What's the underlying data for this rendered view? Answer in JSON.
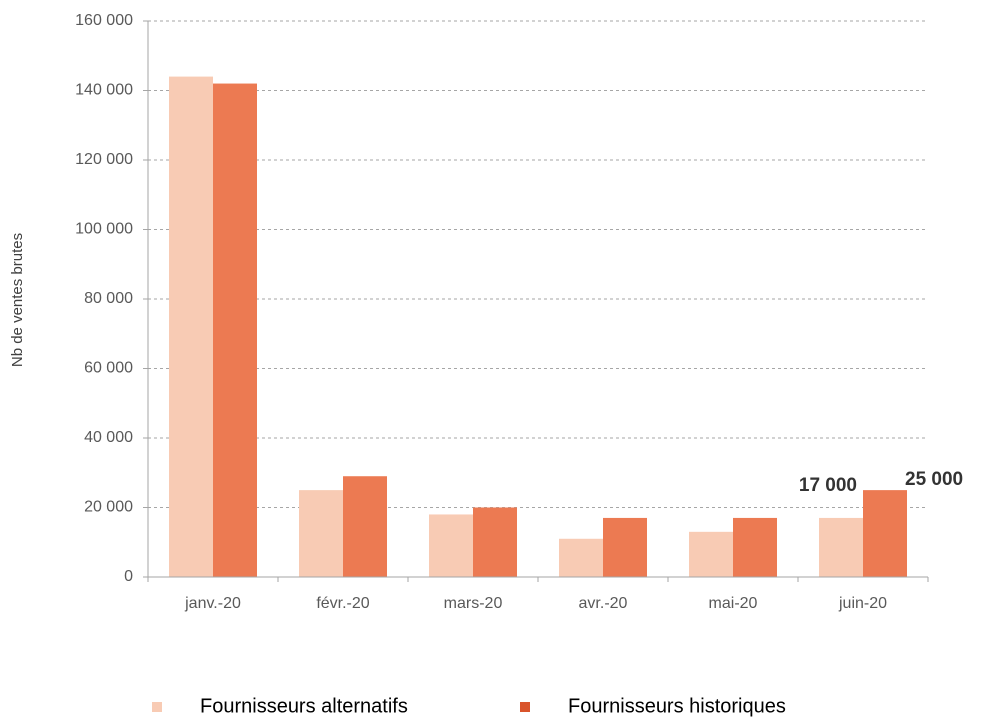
{
  "chart_data": {
    "type": "bar",
    "y_label": "Nb de ventes brutes",
    "categories": [
      "janv.-20",
      "févr.-20",
      "mars-20",
      "avr.-20",
      "mai-20",
      "juin-20"
    ],
    "series": [
      {
        "name": "Fournisseurs alternatifs",
        "color": "#f8cbb4",
        "values": [
          144000,
          25000,
          18000,
          11000,
          13000,
          17000
        ],
        "value_labels": [
          null,
          null,
          null,
          null,
          null,
          "17 000"
        ]
      },
      {
        "name": "Fournisseurs historiques",
        "color": "#ec7a52",
        "values": [
          142000,
          29000,
          20000,
          17000,
          17000,
          25000
        ],
        "value_labels": [
          null,
          null,
          null,
          null,
          null,
          "25 000"
        ]
      }
    ],
    "ylim": [
      0,
      160000
    ],
    "yticks": [
      0,
      {
        "value": 20000,
        "label": "20 000"
      },
      {
        "value": 40000,
        "label": "40 000"
      },
      {
        "value": 60000,
        "label": "60 000"
      },
      {
        "value": 80000,
        "label": "80 000"
      },
      {
        "value": 100000,
        "label": "100 000"
      },
      {
        "value": 120000,
        "label": "120 000"
      },
      {
        "value": 140000,
        "label": "140 000"
      },
      {
        "value": 160000,
        "label": "160 000"
      }
    ],
    "grid": true,
    "legend": "bottom"
  }
}
